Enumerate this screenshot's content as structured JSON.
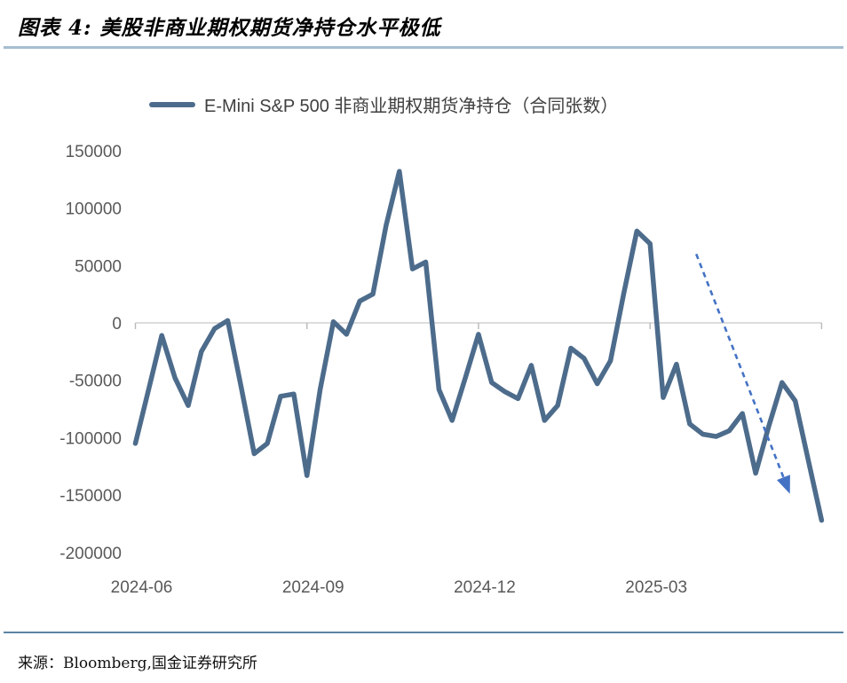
{
  "title": "图表 4:  美股非商业期权期货净持仓水平极低",
  "legend": {
    "label": "E-Mini S&P 500 非商业期权期货净持仓（合同张数）"
  },
  "source": {
    "label": "来源：Bloomberg,国金证券研究所"
  },
  "colors": {
    "line": "#4d6c8c",
    "arrow": "#4472c4",
    "axis": "#d2d2d2",
    "tick_label": "#595959",
    "top_rule": "#a6bdd0",
    "bottom_rule": "#5b84a4"
  },
  "chart_data": {
    "type": "line",
    "title": "E-Mini S&P 500 非商业期权期货净持仓（合同张数）",
    "xlabel": "",
    "ylabel": "",
    "x_unit": "week",
    "x_tick_labels": [
      "2024-06",
      "2024-09",
      "2024-12",
      "2025-03"
    ],
    "x_tick_weeks": [
      0,
      13,
      26,
      39
    ],
    "ylim": [
      -200000,
      150000
    ],
    "y_tick_values": [
      150000,
      100000,
      50000,
      0,
      -50000,
      -100000,
      -150000,
      -200000
    ],
    "grid": false,
    "legend_position": "top",
    "series": [
      {
        "name": "E-Mini S&P 500 非商业期权期货净持仓（合同张数）",
        "color": "#4d6c8c",
        "values": [
          -105000,
          -58000,
          -11000,
          -48000,
          -72000,
          -25000,
          -5000,
          2000,
          -55000,
          -114000,
          -105000,
          -64000,
          -62000,
          -133000,
          -58000,
          1000,
          -10000,
          19000,
          25000,
          85000,
          132000,
          47000,
          53000,
          -58000,
          -85000,
          -48000,
          -10000,
          -52000,
          -60000,
          -66000,
          -37000,
          -85000,
          -72000,
          -22000,
          -31000,
          -53000,
          -33000,
          25000,
          80000,
          69000,
          -65000,
          -36000,
          -88000,
          -97000,
          -99000,
          -94000,
          -79000,
          -131000,
          -90000,
          -52000,
          -68000,
          -120000,
          -172000
        ]
      }
    ],
    "annotation_arrow": {
      "style": "dashed",
      "color": "#4472c4",
      "from": {
        "week": 42.5,
        "value": 60000
      },
      "to": {
        "week": 49.6,
        "value": -149000
      }
    }
  }
}
